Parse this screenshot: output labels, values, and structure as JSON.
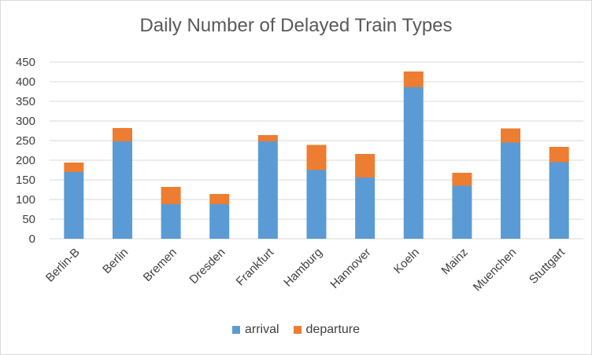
{
  "chart_data": {
    "type": "bar",
    "stacked": true,
    "title": "Daily Number of Delayed Train Types",
    "xlabel": "",
    "ylabel": "",
    "categories": [
      "Berlin-B",
      "Berlin",
      "Bremen",
      "Dresden",
      "Frankfurt",
      "Hamburg",
      "Hannover",
      "Koeln",
      "Mainz",
      "Muenchen",
      "Stuttgart"
    ],
    "series": [
      {
        "name": "arrival",
        "color": "#5B9BD5",
        "values": [
          170,
          248,
          88,
          88,
          248,
          175,
          156,
          386,
          135,
          245,
          195
        ]
      },
      {
        "name": "departure",
        "color": "#ED7D31",
        "values": [
          24,
          34,
          44,
          26,
          16,
          64,
          60,
          40,
          33,
          36,
          39
        ]
      }
    ],
    "ylim": [
      0,
      450
    ],
    "yticks": [
      "0",
      "50",
      "100",
      "150",
      "200",
      "250",
      "300",
      "350",
      "400",
      "450"
    ],
    "grid": true,
    "legend_position": "bottom"
  }
}
